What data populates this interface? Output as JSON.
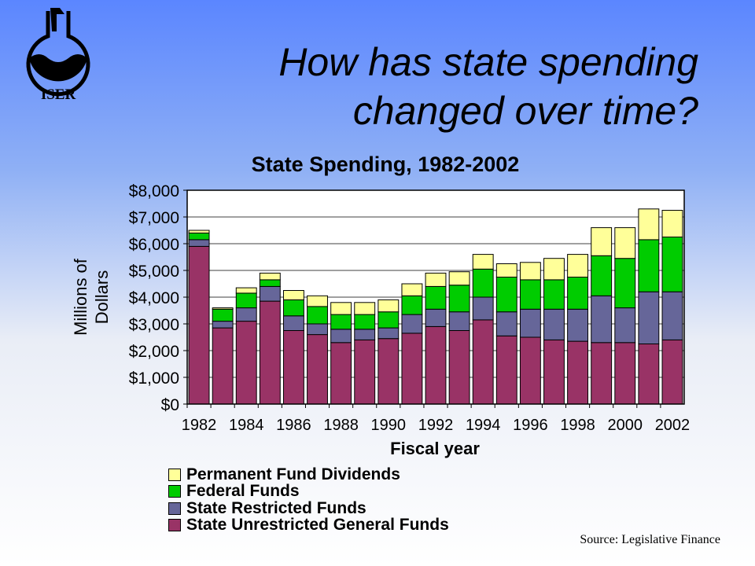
{
  "header": {
    "logo_text": "ISER",
    "title_line1": "How has state spending",
    "title_line2": "changed over time?"
  },
  "source": "Source: Legislative Finance",
  "colors": {
    "state_unrestricted": "#993366",
    "state_restricted": "#666699",
    "federal": "#00cc00",
    "pfd": "#ffff99"
  },
  "chart_data": {
    "type": "bar",
    "stacked": true,
    "title": "State Spending, 1982-2002",
    "xlabel": "Fiscal year",
    "ylabel_line1": "Millions of",
    "ylabel_line2": "Dollars",
    "ylim": [
      0,
      8000
    ],
    "yticks": [
      0,
      1000,
      2000,
      3000,
      4000,
      5000,
      6000,
      7000,
      8000
    ],
    "ytick_labels": [
      "$0",
      "$1,000",
      "$2,000",
      "$3,000",
      "$4,000",
      "$5,000",
      "$6,000",
      "$7,000",
      "$8,000"
    ],
    "categories": [
      "1982",
      "1983",
      "1984",
      "1985",
      "1986",
      "1987",
      "1988",
      "1989",
      "1990",
      "1991",
      "1992",
      "1993",
      "1994",
      "1995",
      "1996",
      "1997",
      "1998",
      "1999",
      "2000",
      "2001",
      "2002"
    ],
    "xtick_labels": [
      "1982",
      "",
      "1984",
      "",
      "1986",
      "",
      "1988",
      "",
      "1990",
      "",
      "1992",
      "",
      "1994",
      "",
      "1996",
      "",
      "1998",
      "",
      "2000",
      "",
      "2002"
    ],
    "legend_position": "bottom",
    "series": [
      {
        "name": "State Unrestricted General Funds",
        "color": "#993366",
        "values": [
          5900,
          2850,
          3100,
          3850,
          2750,
          2600,
          2300,
          2400,
          2450,
          2650,
          2900,
          2750,
          3150,
          2550,
          2500,
          2400,
          2350,
          2300,
          2300,
          2250,
          2400
        ]
      },
      {
        "name": "State Restricted Funds",
        "color": "#666699",
        "values": [
          250,
          250,
          500,
          550,
          550,
          400,
          500,
          400,
          400,
          700,
          650,
          700,
          850,
          900,
          1050,
          1150,
          1200,
          1750,
          1300,
          1950,
          1800
        ]
      },
      {
        "name": "Federal Funds",
        "color": "#00cc00",
        "values": [
          250,
          450,
          550,
          250,
          600,
          650,
          550,
          550,
          600,
          700,
          850,
          1000,
          1050,
          1300,
          1100,
          1100,
          1200,
          1500,
          1850,
          1950,
          2050
        ]
      },
      {
        "name": "Permanent Fund Dividends",
        "color": "#ffff99",
        "values": [
          100,
          50,
          200,
          250,
          350,
          400,
          450,
          450,
          450,
          450,
          500,
          500,
          550,
          500,
          650,
          800,
          850,
          1050,
          1150,
          1150,
          1000
        ]
      }
    ]
  }
}
